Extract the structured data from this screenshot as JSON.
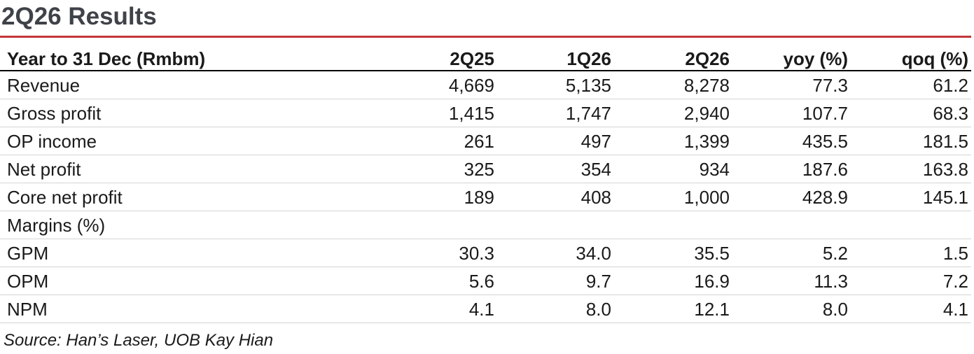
{
  "title": "2Q26 Results",
  "table": {
    "headers": [
      "Year to 31 Dec (Rmbm)",
      "2Q25",
      "1Q26",
      "2Q26",
      "yoy (%)",
      "qoq (%)"
    ],
    "rows": [
      {
        "label": "Revenue",
        "values": [
          "4,669",
          "5,135",
          "8,278",
          "77.3",
          "61.2"
        ]
      },
      {
        "label": "Gross profit",
        "values": [
          "1,415",
          "1,747",
          "2,940",
          "107.7",
          "68.3"
        ]
      },
      {
        "label": "OP income",
        "values": [
          "261",
          "497",
          "1,399",
          "435.5",
          "181.5"
        ]
      },
      {
        "label": "Net profit",
        "values": [
          "325",
          "354",
          "934",
          "187.6",
          "163.8"
        ]
      },
      {
        "label": "Core net profit",
        "values": [
          "189",
          "408",
          "1,000",
          "428.9",
          "145.1"
        ]
      },
      {
        "label": "Margins (%)",
        "values": [
          "",
          "",
          "",
          "",
          ""
        ]
      },
      {
        "label": "GPM",
        "values": [
          "30.3",
          "34.0",
          "35.5",
          "5.2",
          "1.5"
        ]
      },
      {
        "label": "OPM",
        "values": [
          "5.6",
          "9.7",
          "16.9",
          "11.3",
          "7.2"
        ]
      },
      {
        "label": "NPM",
        "values": [
          "4.1",
          "8.0",
          "12.1",
          "8.0",
          "4.1"
        ]
      }
    ]
  },
  "source": "Source: Han’s Laser, UOB Kay Hian",
  "colors": {
    "title_text": "#3f4248",
    "title_rule": "#c2353a",
    "row_divider": "#d4d4d4"
  }
}
